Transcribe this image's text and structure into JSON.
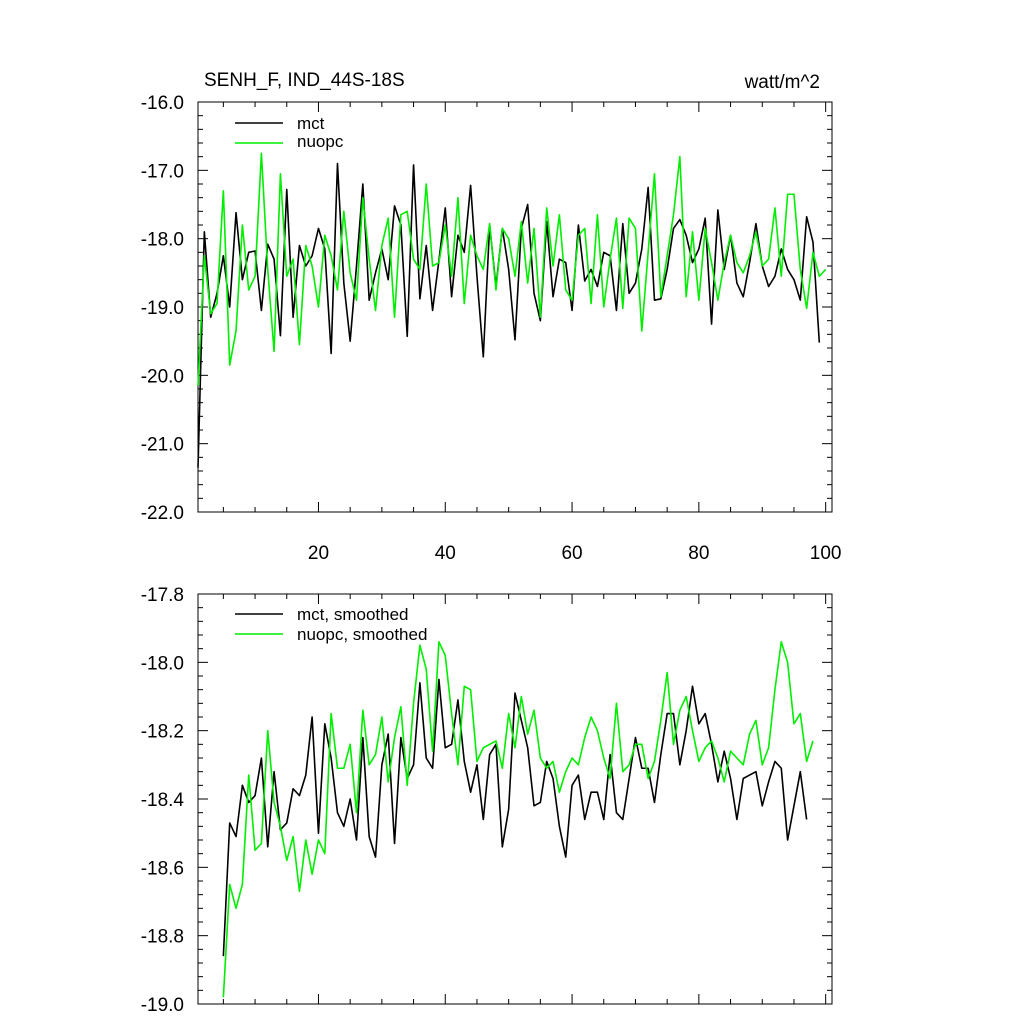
{
  "colors": {
    "mct": "#000000",
    "nuopc": "#00ee00"
  },
  "chart_data": [
    {
      "type": "line",
      "title": "SENH_F, IND_44S-18S",
      "units": "watt/m^2",
      "xlabel": "",
      "ylabel": "",
      "xlim": [
        1,
        101
      ],
      "ylim": [
        -22.0,
        -16.0
      ],
      "xticks": [
        20,
        40,
        60,
        80,
        100
      ],
      "xtick_labels": [
        "20",
        "40",
        "60",
        "80",
        "100"
      ],
      "yticks": [
        -22.0,
        -21.0,
        -20.0,
        -19.0,
        -18.0,
        -17.0,
        -16.0
      ],
      "ytick_labels": [
        "-22.0",
        "-21.0",
        "-20.0",
        "-19.0",
        "-18.0",
        "-17.0",
        "-16.0"
      ],
      "legend_position": "top-left",
      "x_start": 1,
      "series": [
        {
          "name": "mct",
          "color": "#000000",
          "values": [
            -21.35,
            -17.9,
            -19.15,
            -18.8,
            -18.25,
            -19.0,
            -17.62,
            -18.6,
            -18.2,
            -18.18,
            -19.05,
            -18.08,
            -18.3,
            -19.42,
            -17.28,
            -19.15,
            -18.1,
            -18.4,
            -18.25,
            -17.85,
            -18.15,
            -19.68,
            -16.9,
            -18.65,
            -19.5,
            -18.4,
            -17.2,
            -18.9,
            -18.5,
            -18.15,
            -18.6,
            -17.52,
            -17.8,
            -19.43,
            -16.92,
            -18.88,
            -18.1,
            -19.05,
            -18.32,
            -17.55,
            -18.85,
            -17.95,
            -18.2,
            -17.22,
            -18.55,
            -19.73,
            -17.8,
            -18.7,
            -17.85,
            -18.45,
            -19.48,
            -17.85,
            -17.5,
            -18.8,
            -19.2,
            -17.75,
            -18.85,
            -18.3,
            -18.35,
            -19.05,
            -17.8,
            -18.62,
            -18.45,
            -18.7,
            -18.2,
            -18.25,
            -19.05,
            -17.78,
            -18.8,
            -18.65,
            -18.15,
            -17.25,
            -18.9,
            -18.88,
            -18.45,
            -17.85,
            -17.72,
            -17.95,
            -18.35,
            -18.15,
            -17.7,
            -19.25,
            -17.58,
            -18.45,
            -17.95,
            -18.65,
            -18.85,
            -18.35,
            -17.78,
            -18.4,
            -18.7,
            -18.55,
            -18.15,
            -18.45,
            -18.6,
            -18.9,
            -17.68,
            -18.05,
            -19.52
          ]
        },
        {
          "name": "nuopc",
          "color": "#00ee00",
          "values": [
            -20.15,
            -18.25,
            -19.1,
            -18.95,
            -17.3,
            -19.85,
            -19.35,
            -17.8,
            -18.75,
            -18.55,
            -16.75,
            -18.45,
            -19.65,
            -17.05,
            -18.55,
            -18.3,
            -19.55,
            -18.1,
            -18.4,
            -19.0,
            -17.95,
            -18.25,
            -18.75,
            -17.6,
            -18.5,
            -18.9,
            -17.4,
            -18.3,
            -19.05,
            -18.1,
            -17.7,
            -19.15,
            -17.65,
            -17.6,
            -18.3,
            -18.45,
            -17.2,
            -18.4,
            -18.35,
            -17.8,
            -18.55,
            -17.4,
            -18.95,
            -17.95,
            -18.25,
            -18.45,
            -17.78,
            -18.75,
            -17.85,
            -18.0,
            -18.55,
            -17.75,
            -18.65,
            -17.85,
            -19.15,
            -17.55,
            -18.4,
            -17.65,
            -18.75,
            -18.9,
            -17.95,
            -17.85,
            -18.95,
            -17.65,
            -19.0,
            -18.3,
            -17.7,
            -19.02,
            -17.7,
            -17.85,
            -19.35,
            -18.2,
            -17.05,
            -18.85,
            -18.25,
            -17.65,
            -16.8,
            -18.85,
            -17.9,
            -18.9,
            -17.85,
            -18.35,
            -18.9,
            -18.35,
            -17.95,
            -18.35,
            -18.5,
            -18.25,
            -17.9,
            -18.4,
            -18.3,
            -17.55,
            -18.55,
            -17.35,
            -17.35,
            -18.45,
            -19.02,
            -18.2,
            -18.55,
            -18.45
          ]
        }
      ]
    },
    {
      "type": "line",
      "title": "",
      "xlabel": "",
      "ylabel": "",
      "xlim": [
        1,
        101
      ],
      "ylim": [
        -19.0,
        -17.8
      ],
      "xticks": [
        20,
        40,
        60,
        80,
        100
      ],
      "yticks": [
        -19.0,
        -18.8,
        -18.6,
        -18.4,
        -18.2,
        -18.0,
        -17.8
      ],
      "ytick_labels": [
        "-19.0",
        "-18.8",
        "-18.6",
        "-18.4",
        "-18.2",
        "-18.0",
        "-17.8"
      ],
      "legend_position": "top-left",
      "x_start": 5,
      "series": [
        {
          "name": "mct, smoothed",
          "color": "#000000",
          "values": [
            -18.86,
            -18.47,
            -18.51,
            -18.36,
            -18.41,
            -18.39,
            -18.28,
            -18.54,
            -18.32,
            -18.49,
            -18.47,
            -18.37,
            -18.39,
            -18.33,
            -18.16,
            -18.5,
            -18.18,
            -18.28,
            -18.44,
            -18.48,
            -18.4,
            -18.52,
            -18.22,
            -18.51,
            -18.57,
            -18.3,
            -18.21,
            -18.53,
            -18.22,
            -18.34,
            -18.3,
            -18.06,
            -18.28,
            -18.31,
            -18.05,
            -18.25,
            -18.24,
            -18.11,
            -18.29,
            -18.38,
            -18.3,
            -18.46,
            -18.27,
            -18.24,
            -18.54,
            -18.43,
            -18.09,
            -18.17,
            -18.25,
            -18.42,
            -18.41,
            -18.29,
            -18.34,
            -18.48,
            -18.57,
            -18.36,
            -18.33,
            -18.46,
            -18.38,
            -18.38,
            -18.46,
            -18.27,
            -18.44,
            -18.46,
            -18.34,
            -18.22,
            -18.31,
            -18.31,
            -18.41,
            -18.27,
            -18.15,
            -18.15,
            -18.3,
            -18.2,
            -18.07,
            -18.18,
            -18.15,
            -18.24,
            -18.35,
            -18.26,
            -18.34,
            -18.46,
            -18.34,
            -18.33,
            -18.32,
            -18.42,
            -18.35,
            -18.29,
            -18.31,
            -18.52,
            -18.42,
            -18.32,
            -18.46
          ]
        },
        {
          "name": "nuopc, smoothed",
          "color": "#00ee00",
          "values": [
            -18.98,
            -18.65,
            -18.72,
            -18.65,
            -18.33,
            -18.55,
            -18.53,
            -18.2,
            -18.41,
            -18.48,
            -18.58,
            -18.51,
            -18.67,
            -18.52,
            -18.62,
            -18.52,
            -18.56,
            -18.15,
            -18.31,
            -18.31,
            -18.24,
            -18.44,
            -18.14,
            -18.3,
            -18.27,
            -18.16,
            -18.35,
            -18.22,
            -18.13,
            -18.36,
            -18.12,
            -17.95,
            -18.02,
            -18.26,
            -17.94,
            -17.98,
            -18.15,
            -18.3,
            -18.07,
            -18.08,
            -18.29,
            -18.25,
            -18.24,
            -18.23,
            -18.31,
            -18.15,
            -18.25,
            -18.1,
            -18.21,
            -18.14,
            -18.28,
            -18.31,
            -18.29,
            -18.38,
            -18.32,
            -18.28,
            -18.3,
            -18.22,
            -18.16,
            -18.2,
            -18.28,
            -18.34,
            -18.12,
            -18.32,
            -18.3,
            -18.24,
            -18.24,
            -18.34,
            -18.29,
            -18.17,
            -18.03,
            -18.24,
            -18.14,
            -18.1,
            -18.2,
            -18.29,
            -18.25,
            -18.23,
            -18.28,
            -18.35,
            -18.26,
            -18.28,
            -18.3,
            -18.21,
            -18.17,
            -18.3,
            -18.25,
            -18.08,
            -17.94,
            -18.0,
            -18.18,
            -18.15,
            -18.29,
            -18.23
          ]
        }
      ]
    }
  ]
}
